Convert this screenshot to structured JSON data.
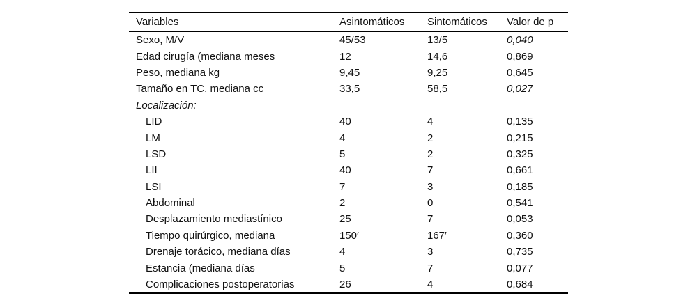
{
  "table": {
    "headers": {
      "variables": "Variables",
      "asintomaticos": "Asintomáticos",
      "sintomaticos": "Sintomáticos",
      "valor_p": "Valor de p"
    },
    "rows": [
      {
        "variable": "Sexo, M/V",
        "asintomaticos": "45/53",
        "sintomaticos": "13/5",
        "p": "0,040"
      },
      {
        "variable": "Edad cirugía (mediana meses",
        "asintomaticos": "12",
        "sintomaticos": "14,6",
        "p": "0,869"
      },
      {
        "variable": "Peso, mediana kg",
        "asintomaticos": "9,45",
        "sintomaticos": "9,25",
        "p": "0,645"
      },
      {
        "variable": "Tamaño en TC, mediana cc",
        "asintomaticos": "33,5",
        "sintomaticos": "58,5",
        "p": "0,027"
      },
      {
        "variable": "Localización:",
        "asintomaticos": "",
        "sintomaticos": "",
        "p": ""
      },
      {
        "variable": "LID",
        "asintomaticos": "40",
        "sintomaticos": "4",
        "p": "0,135"
      },
      {
        "variable": "LM",
        "asintomaticos": "4",
        "sintomaticos": "2",
        "p": "0,215"
      },
      {
        "variable": "LSD",
        "asintomaticos": "5",
        "sintomaticos": "2",
        "p": "0,325"
      },
      {
        "variable": "LII",
        "asintomaticos": "40",
        "sintomaticos": "7",
        "p": "0,661"
      },
      {
        "variable": "LSI",
        "asintomaticos": "7",
        "sintomaticos": "3",
        "p": "0,185"
      },
      {
        "variable": "Abdominal",
        "asintomaticos": "2",
        "sintomaticos": "0",
        "p": "0,541"
      },
      {
        "variable": "Desplazamiento mediastínico",
        "asintomaticos": "25",
        "sintomaticos": "7",
        "p": "0,053"
      },
      {
        "variable": "Tiempo quirúrgico, mediana",
        "asintomaticos": "150′",
        "sintomaticos": "167′",
        "p": "0,360"
      },
      {
        "variable": "Drenaje torácico, mediana días",
        "asintomaticos": "4",
        "sintomaticos": "3",
        "p": "0,735"
      },
      {
        "variable": "Estancia (mediana días",
        "asintomaticos": "5",
        "sintomaticos": "7",
        "p": "0,077"
      },
      {
        "variable": "Complicaciones postoperatorias",
        "asintomaticos": "26",
        "sintomaticos": "4",
        "p": "0,684"
      }
    ]
  }
}
